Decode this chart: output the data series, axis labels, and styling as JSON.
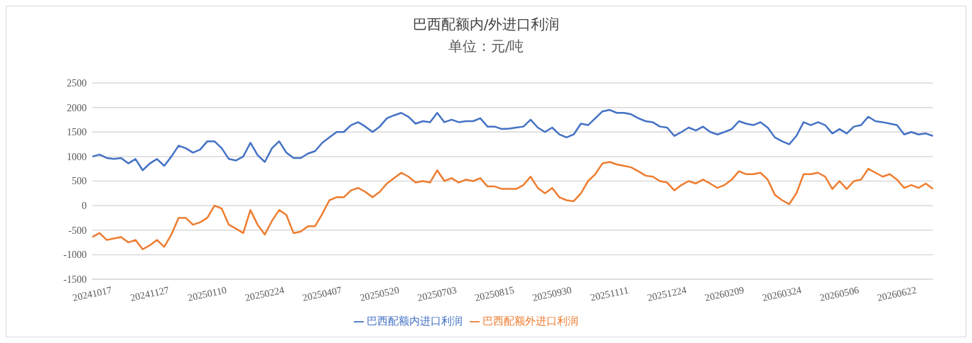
{
  "chart_data": {
    "type": "line",
    "title": "巴西配额内/外进口利润",
    "subtitle": "单位：元/吨",
    "categories": [
      "20241017",
      null,
      null,
      null,
      null,
      null,
      null,
      null,
      "20241127",
      null,
      null,
      null,
      null,
      null,
      null,
      null,
      "20250110",
      null,
      null,
      null,
      null,
      null,
      null,
      null,
      "20250224",
      null,
      null,
      null,
      null,
      null,
      null,
      null,
      "20250407",
      null,
      null,
      null,
      null,
      null,
      null,
      null,
      "20250520",
      null,
      null,
      null,
      null,
      null,
      null,
      null,
      "20250703",
      null,
      null,
      null,
      null,
      null,
      null,
      null,
      "20250815",
      null,
      null,
      null,
      null,
      null,
      null,
      null,
      "20250930",
      null,
      null,
      null,
      null,
      null,
      null,
      null,
      "20251111",
      null,
      null,
      null,
      null,
      null,
      null,
      null,
      "20251224",
      null,
      null,
      null,
      null,
      null,
      null,
      null,
      "20260209",
      null,
      null,
      null,
      null,
      null,
      null,
      null,
      "20260324",
      null,
      null,
      null,
      null,
      null,
      null,
      null,
      "20260506",
      null,
      null,
      null,
      null,
      null,
      null,
      null,
      "20260622",
      null,
      null,
      null,
      null,
      null
    ],
    "series": [
      {
        "name": "巴西配额内进口利润",
        "color": "#4472c4",
        "values": [
          1000,
          1040,
          970,
          950,
          970,
          860,
          950,
          720,
          860,
          950,
          810,
          1000,
          1220,
          1170,
          1080,
          1140,
          1310,
          1310,
          1170,
          950,
          920,
          1000,
          1280,
          1030,
          890,
          1170,
          1310,
          1080,
          970,
          970,
          1060,
          1110,
          1280,
          1390,
          1500,
          1500,
          1640,
          1700,
          1610,
          1500,
          1610,
          1780,
          1840,
          1890,
          1810,
          1670,
          1720,
          1700,
          1890,
          1700,
          1750,
          1700,
          1720,
          1720,
          1780,
          1610,
          1610,
          1560,
          1570,
          1590,
          1610,
          1750,
          1590,
          1500,
          1590,
          1450,
          1390,
          1450,
          1670,
          1640,
          1780,
          1920,
          1950,
          1890,
          1890,
          1860,
          1780,
          1720,
          1700,
          1610,
          1590,
          1420,
          1500,
          1590,
          1530,
          1610,
          1500,
          1450,
          1500,
          1560,
          1720,
          1670,
          1640,
          1700,
          1590,
          1390,
          1310,
          1250,
          1420,
          1700,
          1640,
          1700,
          1640,
          1470,
          1560,
          1470,
          1610,
          1640,
          1810,
          1720,
          1700,
          1670,
          1640,
          1450,
          1500,
          1450,
          1470,
          1420
        ]
      },
      {
        "name": "巴西配额外进口利润",
        "color": "#ed7d31",
        "values": [
          -640,
          -560,
          -700,
          -670,
          -640,
          -750,
          -700,
          -890,
          -810,
          -700,
          -840,
          -590,
          -250,
          -250,
          -390,
          -340,
          -250,
          0,
          -60,
          -390,
          -470,
          -560,
          -90,
          -390,
          -590,
          -310,
          -90,
          -190,
          -560,
          -530,
          -420,
          -420,
          -170,
          110,
          170,
          170,
          310,
          360,
          280,
          170,
          280,
          450,
          560,
          670,
          590,
          470,
          500,
          470,
          720,
          500,
          560,
          470,
          530,
          500,
          560,
          390,
          390,
          340,
          340,
          340,
          420,
          590,
          360,
          250,
          360,
          170,
          110,
          90,
          250,
          500,
          640,
          860,
          890,
          840,
          810,
          780,
          700,
          610,
          590,
          500,
          470,
          310,
          420,
          500,
          450,
          530,
          450,
          360,
          420,
          530,
          700,
          640,
          640,
          670,
          530,
          220,
          110,
          30,
          250,
          640,
          640,
          670,
          590,
          340,
          500,
          340,
          500,
          530,
          750,
          670,
          590,
          640,
          530,
          360,
          420,
          360,
          450,
          340
        ]
      }
    ],
    "ylim": [
      -1500,
      2500
    ],
    "yticks": [
      -1500,
      -1000,
      -500,
      0,
      500,
      1000,
      1500,
      2000,
      2500
    ],
    "grid": "y",
    "legend": "bottom",
    "marker": "none",
    "line_style": "solid"
  }
}
